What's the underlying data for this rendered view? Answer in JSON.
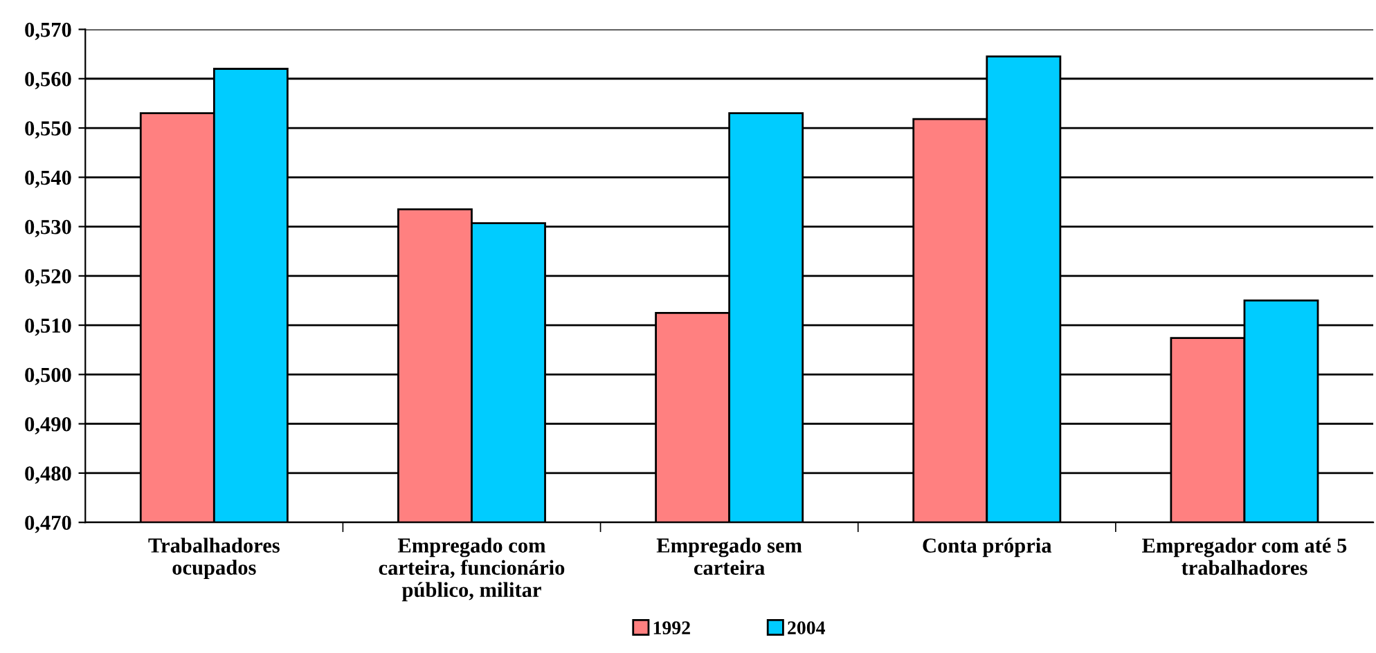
{
  "chart_data": {
    "type": "bar",
    "categories": [
      "Trabalhadores\nocupados",
      "Empregado com\ncarteira, funcionário\npúblico, militar",
      "Empregado sem\ncarteira",
      "Conta própria",
      "Empregador com até 5\ntrabalhadores"
    ],
    "series": [
      {
        "name": "1992",
        "color": "#ff8080",
        "values": [
          0.553,
          0.5335,
          0.5125,
          0.5518,
          0.5074
        ]
      },
      {
        "name": "2004",
        "color": "#00ccff",
        "values": [
          0.562,
          0.5307,
          0.553,
          0.5645,
          0.515
        ]
      }
    ],
    "ylim": [
      0.47,
      0.57
    ],
    "yticks": [
      {
        "value": 0.47,
        "label": "0,470"
      },
      {
        "value": 0.48,
        "label": "0,480"
      },
      {
        "value": 0.49,
        "label": "0,490"
      },
      {
        "value": 0.5,
        "label": "0,500"
      },
      {
        "value": 0.51,
        "label": "0,510"
      },
      {
        "value": 0.52,
        "label": "0,520"
      },
      {
        "value": 0.53,
        "label": "0,530"
      },
      {
        "value": 0.54,
        "label": "0,540"
      },
      {
        "value": 0.55,
        "label": "0,550"
      },
      {
        "value": 0.56,
        "label": "0,560"
      },
      {
        "value": 0.57,
        "label": "0,570"
      }
    ],
    "grid": "y",
    "legend": "bottom"
  }
}
